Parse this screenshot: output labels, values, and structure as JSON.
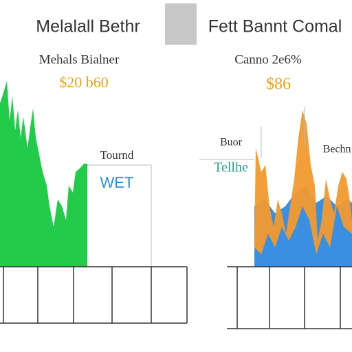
{
  "header": {
    "left_title": "Melalall Bethr",
    "right_title": "Fett Bannt Comal"
  },
  "left_panel": {
    "heading": "Mehals Bialner",
    "figure": "$20 b60",
    "box_label": "Tournd",
    "box_value": "WET"
  },
  "right_panel": {
    "heading": "Canno 2e6%",
    "figure": "$86",
    "label_top": "Buor",
    "label_mid": "Tellhe",
    "label_right": "Bechn"
  }
}
